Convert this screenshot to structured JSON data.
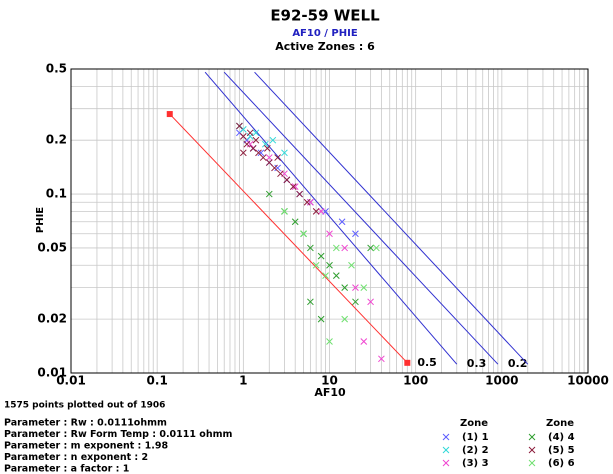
{
  "chart_data": {
    "type": "scatter",
    "title": "E92-59 WELL",
    "subtitle": "AF10 / PHIE",
    "zones_label": "Active Zones : 6",
    "x_label": "AF10",
    "y_label": "PHIE",
    "xlog": true,
    "ylog": true,
    "grid": true,
    "minor_grid": true,
    "xlim": [
      0.01,
      10000
    ],
    "ylim": [
      0.01,
      0.5
    ],
    "xticks": [
      0.01,
      0.1,
      1,
      10,
      100,
      1000,
      10000
    ],
    "yticks": [
      0.01,
      0.02,
      0.05,
      0.1,
      0.2,
      0.5
    ],
    "series": [
      {
        "name": "(1) 1",
        "color": "#5b5bff",
        "x": [
          0.9,
          1.1,
          1.3,
          1.6,
          2.0,
          2.5,
          3.2,
          4.5,
          6,
          9,
          14,
          20
        ],
        "values": [
          0.22,
          0.2,
          0.18,
          0.17,
          0.15,
          0.14,
          0.12,
          0.1,
          0.09,
          0.08,
          0.07,
          0.06
        ]
      },
      {
        "name": "(2) 2",
        "color": "#2fd8d8",
        "x": [
          0.9,
          1.0,
          1.2,
          1.4,
          1.8,
          2.2,
          3.0
        ],
        "values": [
          0.24,
          0.23,
          0.21,
          0.22,
          0.19,
          0.2,
          0.17
        ]
      },
      {
        "name": "(3) 3",
        "color": "#f044d0",
        "x": [
          1.2,
          2,
          3,
          4,
          6,
          8,
          10,
          15,
          20,
          30,
          25,
          40
        ],
        "values": [
          0.19,
          0.16,
          0.13,
          0.11,
          0.09,
          0.08,
          0.06,
          0.05,
          0.03,
          0.025,
          0.015,
          0.012
        ]
      },
      {
        "name": "(4) 4",
        "color": "#2e9e2e",
        "x": [
          2,
          3,
          4,
          5,
          6,
          8,
          10,
          12,
          15,
          20,
          30,
          8,
          6
        ],
        "values": [
          0.1,
          0.08,
          0.07,
          0.06,
          0.05,
          0.045,
          0.04,
          0.035,
          0.03,
          0.025,
          0.05,
          0.02,
          0.025
        ]
      },
      {
        "name": "(5) 5",
        "color": "#8b1a3a",
        "x": [
          0.9,
          1.0,
          1.1,
          1.2,
          1.3,
          1.5,
          1.7,
          2.0,
          2.3,
          2.7,
          3.2,
          3.8,
          4.5,
          5.5,
          7,
          1.0,
          1.4,
          1.9,
          2.5
        ],
        "values": [
          0.24,
          0.21,
          0.19,
          0.22,
          0.18,
          0.17,
          0.16,
          0.15,
          0.14,
          0.13,
          0.12,
          0.11,
          0.1,
          0.09,
          0.08,
          0.17,
          0.2,
          0.18,
          0.16
        ]
      },
      {
        "name": "(6) 6",
        "color": "#6fe06f",
        "x": [
          3,
          5,
          7,
          9,
          12,
          18,
          25,
          35,
          15,
          10
        ],
        "values": [
          0.08,
          0.06,
          0.04,
          0.035,
          0.05,
          0.04,
          0.03,
          0.05,
          0.02,
          0.015
        ]
      }
    ],
    "lines": [
      {
        "label": "0.5",
        "color": "#ff3030",
        "x": [
          0.14,
          80
        ],
        "values": [
          0.28,
          0.0114
        ],
        "end_markers": true
      },
      {
        "label": "0.3",
        "color": "#3030d0",
        "x": [
          0.36,
          300
        ],
        "values": [
          0.48,
          0.0112
        ]
      },
      {
        "label": "0.2",
        "color": "#3030d0",
        "x": [
          0.6,
          900
        ],
        "values": [
          0.48,
          0.0112
        ]
      },
      {
        "color": "#3030d0",
        "x": [
          1.35,
          2000
        ],
        "values": [
          0.48,
          0.0112
        ]
      }
    ],
    "footer": "1575 points plotted out of 1906",
    "parameters": [
      "Parameter : Rw  : 0.0111ohmm",
      "Parameter : Rw Form Temp : 0.0111 ohmm",
      "Parameter : m exponent : 1.98",
      "Parameter : n exponent : 2",
      "Parameter : a factor : 1"
    ],
    "legend_header": "Zone"
  }
}
